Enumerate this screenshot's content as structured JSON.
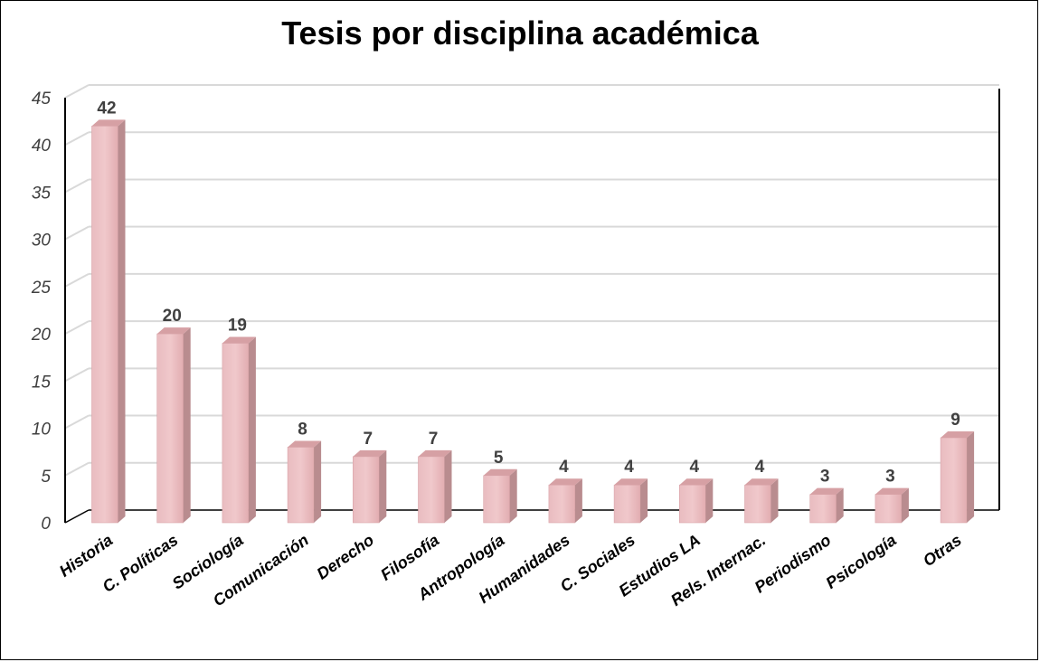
{
  "chart_data": {
    "type": "bar",
    "title": "Tesis por disciplina académica",
    "categories": [
      "Historia",
      "C. Políticas",
      "Sociología",
      "Comunicación",
      "Derecho",
      "Filosofía",
      "Antropología",
      "Humanidades",
      "C. Sociales",
      "Estudios LA",
      "Rels. Internac.",
      "Periodismo",
      "Psicología",
      "Otras"
    ],
    "values": [
      42,
      20,
      19,
      8,
      7,
      7,
      5,
      4,
      4,
      4,
      4,
      3,
      3,
      9
    ],
    "ylim": [
      0,
      45
    ],
    "yticks": [
      0,
      5,
      10,
      15,
      20,
      25,
      30,
      35,
      40,
      45
    ],
    "grid": true,
    "style": "3d-column",
    "colors": {
      "bar_front": "#e8b4b8",
      "bar_side": "#b98c8f",
      "bar_top": "#d6a0a4",
      "gridline": "#d9d9d9",
      "axis": "#000000"
    }
  }
}
